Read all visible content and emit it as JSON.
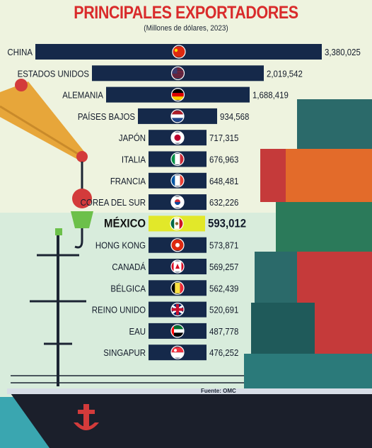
{
  "title": "PRINCIPALES EXPORTADORES",
  "subtitle": "(Millones de dólares, 2023)",
  "source": "Fuente: OMC",
  "colors": {
    "bar": "#15294a",
    "highlight": "#e2e829",
    "title": "#d92b2b"
  },
  "chart_data": {
    "type": "bar",
    "orientation": "horizontal",
    "title": "PRINCIPALES EXPORTADORES",
    "subtitle": "(Millones de dólares, 2023)",
    "categories": [
      "CHINA",
      "ESTADOS UNIDOS",
      "ALEMANIA",
      "PAÍSES BAJOS",
      "JAPÓN",
      "ITALIA",
      "FRANCIA",
      "COREA DEL SUR",
      "MÉXICO",
      "HONG KONG",
      "CANADÁ",
      "BÉLGICA",
      "REINO UNIDO",
      "EAU",
      "SINGAPUR"
    ],
    "values": [
      3380025,
      2019542,
      1688419,
      934568,
      717315,
      676963,
      648481,
      632226,
      593012,
      573871,
      569257,
      562439,
      520691,
      487778,
      476252
    ],
    "value_labels": [
      "3,380,025",
      "2,019,542",
      "1,688,419",
      "934,568",
      "717,315",
      "676,963",
      "648,481",
      "632,226",
      "593,012",
      "573,871",
      "569,257",
      "562,439",
      "520,691",
      "487,778",
      "476,252"
    ],
    "flags": [
      "china-flag-icon",
      "usa-flag-icon",
      "germany-flag-icon",
      "netherlands-flag-icon",
      "japan-flag-icon",
      "italy-flag-icon",
      "france-flag-icon",
      "south-korea-flag-icon",
      "mexico-flag-icon",
      "hong-kong-flag-icon",
      "canada-flag-icon",
      "belgium-flag-icon",
      "uk-flag-icon",
      "uae-flag-icon",
      "singapore-flag-icon"
    ],
    "highlight": "MÉXICO",
    "grid": false,
    "legend": "none"
  }
}
